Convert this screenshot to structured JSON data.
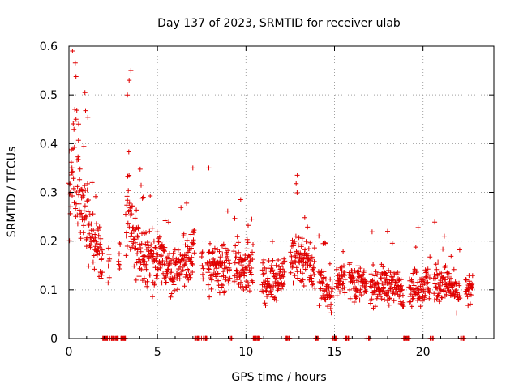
{
  "chart_data": {
    "type": "scatter",
    "title": "Day 137 of 2023, SRMTID for receiver ulab",
    "xlabel": "GPS time / hours",
    "ylabel": "SRMTID / TECUs",
    "xlim": [
      0,
      24
    ],
    "ylim": [
      0,
      0.6
    ],
    "x_ticks": [
      0,
      5,
      10,
      15,
      20
    ],
    "x_tick_labels": [
      "0",
      "5",
      "10",
      "15",
      "20"
    ],
    "y_ticks": [
      0,
      0.1,
      0.2,
      0.3,
      0.4,
      0.5,
      0.6
    ],
    "y_tick_labels": [
      "0",
      "0.1",
      "0.2",
      "0.3",
      "0.4",
      "0.5",
      "0.6"
    ],
    "grid": true,
    "marker": "plus",
    "series": [
      {
        "name": "SRMTID",
        "color": "#e00000",
        "trend": [
          {
            "x": 0.0,
            "y": 0.25
          },
          {
            "x": 0.2,
            "y": 0.36
          },
          {
            "x": 0.5,
            "y": 0.3
          },
          {
            "x": 1.0,
            "y": 0.26
          },
          {
            "x": 1.5,
            "y": 0.18
          },
          {
            "x": 2.0,
            "y": 0.14
          },
          {
            "x": 2.5,
            "y": 0.13
          },
          {
            "x": 3.0,
            "y": 0.17
          },
          {
            "x": 3.3,
            "y": 0.28
          },
          {
            "x": 3.6,
            "y": 0.22
          },
          {
            "x": 4.0,
            "y": 0.18
          },
          {
            "x": 5.0,
            "y": 0.16
          },
          {
            "x": 6.0,
            "y": 0.14
          },
          {
            "x": 7.0,
            "y": 0.18
          },
          {
            "x": 7.5,
            "y": 0.16
          },
          {
            "x": 8.0,
            "y": 0.14
          },
          {
            "x": 9.0,
            "y": 0.14
          },
          {
            "x": 10.0,
            "y": 0.15
          },
          {
            "x": 11.0,
            "y": 0.11
          },
          {
            "x": 12.0,
            "y": 0.13
          },
          {
            "x": 12.8,
            "y": 0.17
          },
          {
            "x": 13.5,
            "y": 0.16
          },
          {
            "x": 14.0,
            "y": 0.12
          },
          {
            "x": 14.8,
            "y": 0.09
          },
          {
            "x": 15.5,
            "y": 0.13
          },
          {
            "x": 16.5,
            "y": 0.11
          },
          {
            "x": 18.0,
            "y": 0.11
          },
          {
            "x": 19.0,
            "y": 0.1
          },
          {
            "x": 20.0,
            "y": 0.11
          },
          {
            "x": 21.0,
            "y": 0.12
          },
          {
            "x": 22.0,
            "y": 0.09
          },
          {
            "x": 22.8,
            "y": 0.1
          }
        ],
        "peaks": [
          {
            "x": 0.9,
            "y": 0.505
          },
          {
            "x": 3.5,
            "y": 0.55
          },
          {
            "x": 3.4,
            "y": 0.53
          },
          {
            "x": 3.3,
            "y": 0.5
          },
          {
            "x": 0.4,
            "y": 0.45
          },
          {
            "x": 0.55,
            "y": 0.44
          },
          {
            "x": 7.0,
            "y": 0.35
          },
          {
            "x": 7.9,
            "y": 0.35
          },
          {
            "x": 12.9,
            "y": 0.335
          },
          {
            "x": 9.7,
            "y": 0.285
          },
          {
            "x": 4.2,
            "y": 0.29
          },
          {
            "x": 18.0,
            "y": 0.22
          },
          {
            "x": 21.2,
            "y": 0.21
          }
        ],
        "zero_segments": [
          [
            1.9,
            2.2
          ],
          [
            2.3,
            2.8
          ],
          [
            2.9,
            3.2
          ],
          [
            7.1,
            7.5
          ],
          [
            7.6,
            7.8
          ],
          [
            9.1,
            9.3
          ],
          [
            10.4,
            10.9
          ],
          [
            12.2,
            12.5
          ],
          [
            13.9,
            14.1
          ],
          [
            14.9,
            15.1
          ],
          [
            15.6,
            15.8
          ],
          [
            16.8,
            17.0
          ],
          [
            18.9,
            19.2
          ],
          [
            20.4,
            20.6
          ],
          [
            22.1,
            22.4
          ]
        ],
        "point_count": 1600
      }
    ]
  }
}
